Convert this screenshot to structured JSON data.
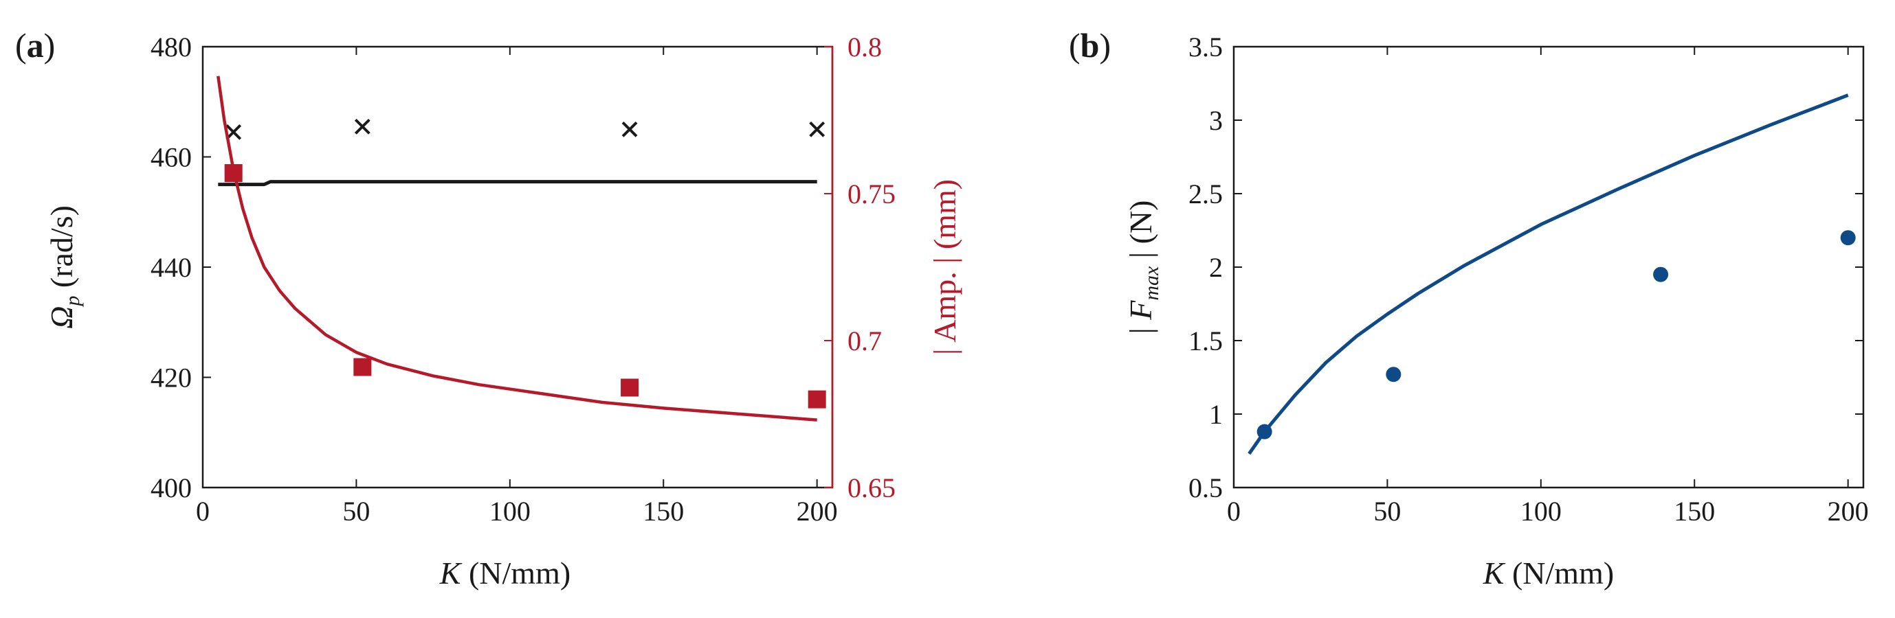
{
  "colors": {
    "black": "#1a1a1a",
    "red": "#b5192a",
    "blue": "#0e4a87"
  },
  "panels": [
    {
      "label_open": "(",
      "label_letter": "a",
      "label_close": ")"
    },
    {
      "label_open": "(",
      "label_letter": "b",
      "label_close": ")"
    }
  ],
  "chart_data": [
    {
      "type": "line",
      "panel": "a",
      "xlabel": {
        "var": "K",
        "unit": " (N/mm)"
      },
      "ylabel_left": {
        "symbol": "Ω",
        "sub": "p",
        "unit": " (rad/s)"
      },
      "ylabel_right": "| Amp. | (mm)",
      "xlim": [
        0,
        205
      ],
      "ylim_left": [
        400,
        480
      ],
      "ylim_right": [
        0.65,
        0.8
      ],
      "xticks": [
        0,
        50,
        100,
        150,
        200
      ],
      "yticks_left": [
        400,
        420,
        440,
        460,
        480
      ],
      "yticks_right": [
        "0.65",
        "0.7",
        "0.75",
        "0.8"
      ],
      "series": [
        {
          "axis": "left",
          "style": "line",
          "color": "black",
          "x": [
            5,
            10,
            20,
            22,
            30,
            50,
            100,
            150,
            200
          ],
          "y": [
            455,
            455,
            455,
            455.5,
            455.5,
            455.5,
            455.5,
            455.5,
            455.5
          ]
        },
        {
          "axis": "left",
          "style": "marker-x",
          "color": "black",
          "x": [
            10,
            52,
            139,
            200
          ],
          "y": [
            464.5,
            465.5,
            465,
            465
          ]
        },
        {
          "axis": "right",
          "style": "line",
          "color": "red",
          "x": [
            5,
            7,
            10,
            13,
            16,
            20,
            25,
            30,
            40,
            50,
            60,
            75,
            90,
            110,
            130,
            150,
            175,
            200
          ],
          "y": [
            0.79,
            0.775,
            0.758,
            0.745,
            0.735,
            0.725,
            0.717,
            0.711,
            0.702,
            0.696,
            0.692,
            0.688,
            0.685,
            0.682,
            0.679,
            0.677,
            0.675,
            0.673
          ]
        },
        {
          "axis": "right",
          "style": "marker-square",
          "color": "red",
          "x": [
            10,
            52,
            139,
            200
          ],
          "y": [
            0.757,
            0.691,
            0.684,
            0.68
          ]
        }
      ]
    },
    {
      "type": "line",
      "panel": "b",
      "xlabel": {
        "var": "K",
        "unit": " (N/mm)"
      },
      "ylabel": {
        "pre": "| ",
        "var": "F",
        "sub": "max",
        "post": " |  (N)"
      },
      "xlim": [
        0,
        205
      ],
      "ylim": [
        0.5,
        3.5
      ],
      "xticks": [
        0,
        50,
        100,
        150,
        200
      ],
      "yticks": [
        "0.5",
        "1",
        "1.5",
        "2",
        "2.5",
        "3",
        "3.5"
      ],
      "series": [
        {
          "style": "line",
          "color": "blue",
          "x": [
            5,
            10,
            20,
            30,
            40,
            50,
            60,
            75,
            100,
            125,
            150,
            175,
            200
          ],
          "y": [
            0.73,
            0.88,
            1.13,
            1.35,
            1.53,
            1.68,
            1.82,
            2.01,
            2.29,
            2.53,
            2.76,
            2.97,
            3.17
          ]
        },
        {
          "style": "marker-dot",
          "color": "blue",
          "x": [
            10,
            52,
            139,
            200
          ],
          "y": [
            0.88,
            1.27,
            1.95,
            2.2
          ]
        }
      ]
    }
  ]
}
